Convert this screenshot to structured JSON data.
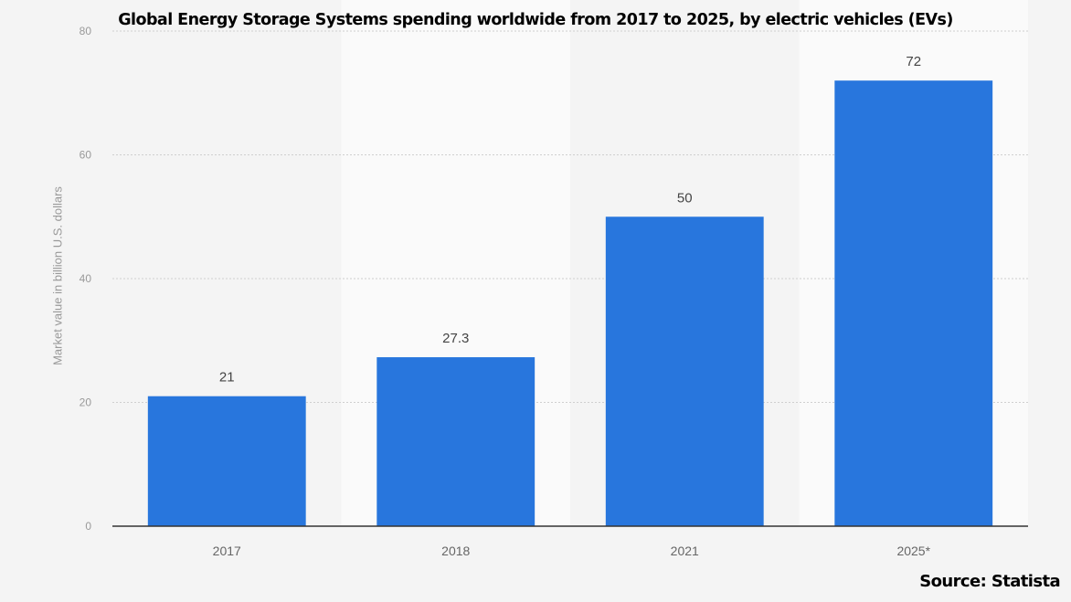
{
  "chart_data": {
    "type": "bar",
    "title": "Global Energy Storage Systems spending worldwide from 2017 to 2025, by electric vehicles (EVs)",
    "categories": [
      "2017",
      "2018",
      "2021",
      "2025*"
    ],
    "values": [
      21,
      27.3,
      50,
      72
    ],
    "value_labels": [
      "21",
      "27.3",
      "50",
      "72"
    ],
    "xlabel": "",
    "ylabel": "Market value in billion U.S. dollars",
    "ylim": [
      0,
      80
    ],
    "yticks": [
      0,
      20,
      40,
      60,
      80
    ],
    "ytick_labels": [
      "0",
      "20",
      "40",
      "60",
      "80"
    ],
    "grid": true,
    "bar_color": "#2876dd",
    "source": "Source: Statista"
  }
}
